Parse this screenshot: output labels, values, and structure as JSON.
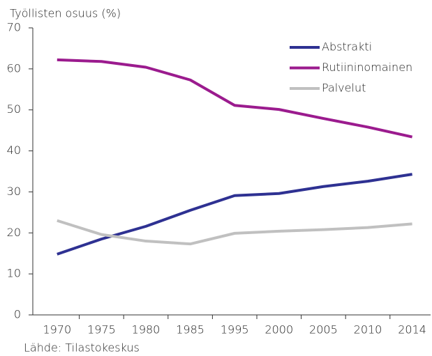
{
  "chart_data": {
    "type": "line",
    "title": "Työllisten osuus (%)",
    "source": "Lähde: Tilastokeskus",
    "categories": [
      "1970",
      "1975",
      "1980",
      "1985",
      "1995",
      "2000",
      "2005",
      "2010",
      "2014"
    ],
    "series": [
      {
        "name": "Abstrakti",
        "color": "#2e3192",
        "values": [
          14.8,
          18.5,
          21.6,
          25.5,
          29.1,
          29.6,
          31.3,
          32.6,
          34.3
        ]
      },
      {
        "name": "Rutiininomainen",
        "color": "#9b1b8e",
        "values": [
          62.2,
          61.8,
          60.4,
          57.3,
          51.1,
          50.1,
          47.9,
          45.8,
          43.4
        ]
      },
      {
        "name": "Palvelut",
        "color": "#c0c0c0",
        "values": [
          23.0,
          19.6,
          18.0,
          17.3,
          19.9,
          20.4,
          20.8,
          21.3,
          22.2
        ]
      }
    ],
    "ylim": [
      0,
      70
    ],
    "yticks": [
      0,
      10,
      20,
      30,
      40,
      50,
      60,
      70
    ],
    "grid": false,
    "legend": "top-right"
  }
}
